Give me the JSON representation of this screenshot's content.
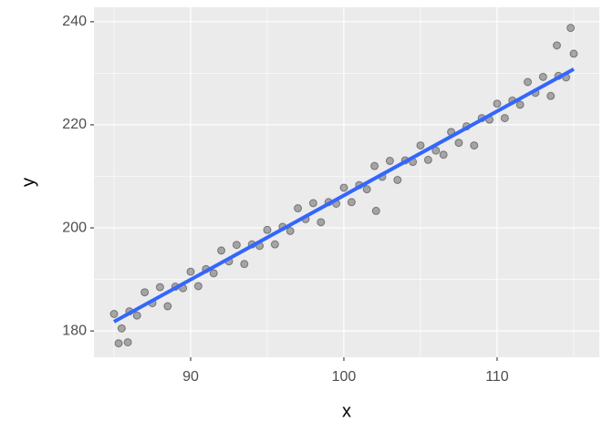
{
  "chart_data": {
    "type": "scatter",
    "x_label": "x",
    "y_label": "y",
    "x": [
      85.0,
      85.5,
      86.0,
      86.5,
      87.0,
      87.5,
      88.0,
      88.5,
      89.0,
      89.5,
      90.0,
      90.5,
      91.0,
      91.5,
      92.0,
      92.5,
      93.0,
      93.5,
      94.0,
      94.5,
      95.0,
      95.5,
      96.0,
      96.5,
      97.0,
      97.5,
      98.0,
      98.5,
      99.0,
      99.5,
      100.0,
      100.5,
      101.0,
      101.5,
      102.0,
      102.5,
      103.0,
      103.5,
      104.0,
      104.5,
      105.0,
      105.5,
      106.0,
      106.5,
      107.0,
      107.5,
      108.0,
      108.5,
      109.0,
      109.5,
      110.0,
      110.5,
      111.0,
      111.5,
      112.0,
      112.5,
      113.0,
      113.5,
      114.0,
      114.5,
      115.0,
      114.8,
      102.1,
      85.3,
      85.9,
      113.9
    ],
    "values": [
      183.3,
      180.5,
      183.8,
      183.0,
      187.5,
      185.4,
      188.5,
      184.8,
      188.6,
      188.3,
      191.5,
      188.7,
      192.0,
      191.2,
      195.6,
      193.5,
      196.7,
      193.0,
      196.8,
      196.5,
      199.6,
      196.8,
      200.2,
      199.4,
      203.8,
      201.7,
      204.8,
      201.1,
      205.0,
      204.7,
      207.8,
      205.0,
      208.3,
      207.5,
      212.0,
      209.9,
      213.0,
      209.3,
      213.1,
      212.8,
      216.0,
      213.2,
      215.0,
      214.2,
      218.6,
      216.5,
      219.7,
      216.0,
      221.3,
      221.0,
      224.1,
      221.3,
      224.7,
      223.9,
      228.3,
      226.2,
      229.3,
      225.6,
      229.5,
      229.2,
      233.8,
      238.8,
      203.3,
      177.6,
      177.8,
      235.4
    ],
    "color": "#000000",
    "alpha": 0.3,
    "fit_line": {
      "x": [
        85,
        115
      ],
      "values": [
        181.8,
        230.8
      ],
      "color": "#3366ff"
    },
    "xlim": [
      83.69,
      116.67
    ],
    "ylim": [
      174.9,
      242.8
    ],
    "xticks": [
      90,
      100,
      110
    ],
    "yticks": [
      180,
      200,
      220,
      240
    ],
    "x_minor_grid": [
      85,
      95,
      105,
      115
    ],
    "y_minor_grid": [
      190,
      210,
      230
    ],
    "grid": true
  }
}
